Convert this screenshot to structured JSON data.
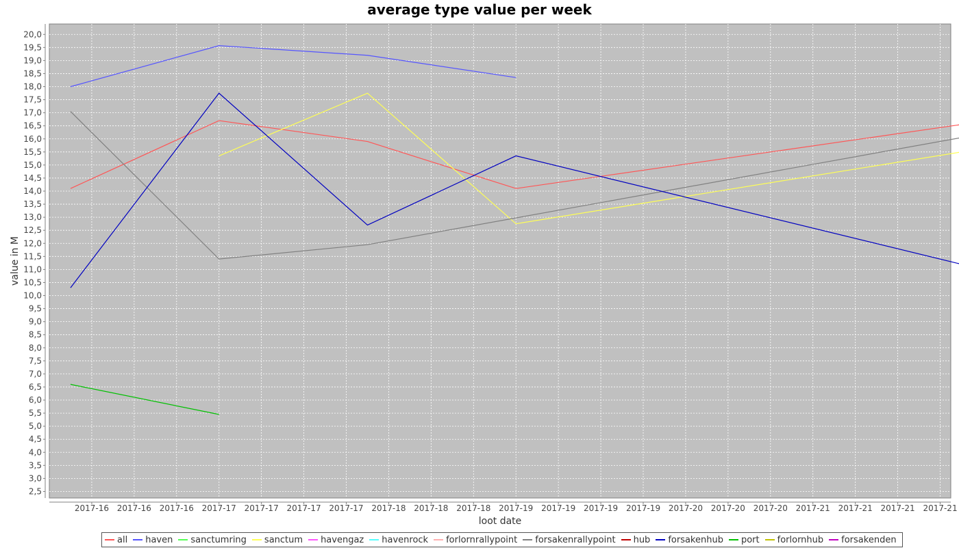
{
  "chart_data": {
    "type": "line",
    "title": "average type value per week",
    "xlabel": "loot date",
    "ylabel": "value in M",
    "ylim": [
      2.25,
      20.4
    ],
    "y_ticks": [
      2.5,
      3.0,
      3.5,
      4.0,
      4.5,
      5.0,
      5.5,
      6.0,
      6.5,
      7.0,
      7.5,
      8.0,
      8.5,
      9.0,
      9.5,
      10.0,
      10.5,
      11.0,
      11.5,
      12.0,
      12.5,
      13.0,
      13.5,
      14.0,
      14.5,
      15.0,
      15.5,
      16.0,
      16.5,
      17.0,
      17.5,
      18.0,
      18.5,
      19.0,
      19.5,
      20.0
    ],
    "y_tick_labels": [
      "2,5",
      "3,0",
      "3,5",
      "4,0",
      "4,5",
      "5,0",
      "5,5",
      "6,0",
      "6,5",
      "7,0",
      "7,5",
      "8,0",
      "8,5",
      "9,0",
      "9,5",
      "10,0",
      "10,5",
      "11,0",
      "11,5",
      "12,0",
      "12,5",
      "13,0",
      "13,5",
      "14,0",
      "14,5",
      "15,0",
      "15,5",
      "16,0",
      "16,5",
      "17,0",
      "17,5",
      "18,0",
      "18,5",
      "19,0",
      "19,5",
      "20,0"
    ],
    "x_tick_labels": [
      "2017-16",
      "2017-16",
      "2017-16",
      "2017-17",
      "2017-17",
      "2017-17",
      "2017-17",
      "2017-18",
      "2017-18",
      "2017-18",
      "2017-19",
      "2017-19",
      "2017-19",
      "2017-19",
      "2017-20",
      "2017-20",
      "2017-20",
      "2017-21",
      "2017-21",
      "2017-21",
      "2017-21"
    ],
    "x_range": [
      -0.5,
      20.75
    ],
    "grid": true,
    "legend_position": "bottom",
    "background": "#c0c0c0",
    "series": [
      {
        "name": "all",
        "color": "#ff5555",
        "points": [
          [
            0,
            14.1
          ],
          [
            3.5,
            16.7
          ],
          [
            7,
            15.9
          ],
          [
            10.5,
            14.1
          ],
          [
            21,
            16.55
          ]
        ]
      },
      {
        "name": "haven",
        "color": "#5555ff",
        "points": [
          [
            0,
            18.0
          ],
          [
            3.5,
            19.57
          ],
          [
            7,
            19.2
          ],
          [
            10.5,
            18.35
          ]
        ]
      },
      {
        "name": "sanctumring",
        "color": "#55ff55",
        "points": []
      },
      {
        "name": "sanctum",
        "color": "#ffff55",
        "points": [
          [
            3.5,
            15.35
          ],
          [
            7,
            17.75
          ],
          [
            10.5,
            12.75
          ],
          [
            21,
            15.5
          ]
        ]
      },
      {
        "name": "havengaz",
        "color": "#ff55ff",
        "points": []
      },
      {
        "name": "havenrock",
        "color": "#55ffff",
        "points": []
      },
      {
        "name": "forlornrallypoint",
        "color": "#ffafaf",
        "points": []
      },
      {
        "name": "forsakenrallypoint",
        "color": "#808080",
        "points": [
          [
            0,
            17.05
          ],
          [
            3.5,
            11.4
          ],
          [
            7,
            11.95
          ],
          [
            21,
            16.05
          ]
        ]
      },
      {
        "name": "hub",
        "color": "#c00000",
        "points": []
      },
      {
        "name": "forsakenhub",
        "color": "#0000c0",
        "points": [
          [
            0,
            10.3
          ],
          [
            3.5,
            17.75
          ],
          [
            7,
            12.7
          ],
          [
            10.5,
            15.35
          ],
          [
            21,
            11.2
          ]
        ]
      },
      {
        "name": "port",
        "color": "#00c000",
        "points": [
          [
            0,
            6.6
          ],
          [
            3.5,
            5.45
          ]
        ]
      },
      {
        "name": "forlornhub",
        "color": "#c0c000",
        "points": []
      },
      {
        "name": "forsakenden",
        "color": "#c000c0",
        "points": []
      }
    ]
  }
}
